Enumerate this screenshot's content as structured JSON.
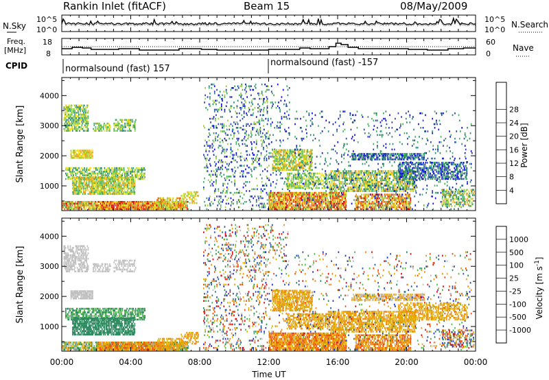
{
  "header": {
    "station": "Rankin Inlet (fitACF)",
    "beam": "Beam 15",
    "date": "08/May/2009"
  },
  "noise_panel": {
    "left_label": "N.Sky",
    "right_label": "N.Search",
    "ytick_top": "10^5",
    "ytick_bottom": "10^0",
    "rtick_top": "10^5",
    "rtick_bottom": "10^0"
  },
  "freq_panel": {
    "left_label_1": "Freq.",
    "left_label_2": "[MHz]",
    "right_label": "Nave",
    "ytick_top": "18",
    "ytick_bottom": "8",
    "rtick_top": "60",
    "rtick_bottom": "0"
  },
  "cpid_panel": {
    "label": "CPID",
    "modes": [
      {
        "text": "normalsound (fast) 157",
        "start_hour": 0
      },
      {
        "text": "normalsound (fast) -157",
        "start_hour": 12
      }
    ]
  },
  "colors": {
    "power_scale": [
      "#1010e0",
      "#2a3fb0",
      "#2f8a7a",
      "#43b060",
      "#9ad040",
      "#f0e020",
      "#f0a020",
      "#f06010",
      "#e01010"
    ],
    "velocity_scale": [
      "#2030d0",
      "#2b55a8",
      "#2f8a60",
      "#4fb848",
      "#c0c0c0",
      "#e0b000",
      "#f09010",
      "#f05010",
      "#e01010"
    ]
  },
  "chart_data": [
    {
      "type": "heatmap",
      "name": "power",
      "ylabel": "Slant Range [km]",
      "xlabel": "",
      "y_ticks": [
        1000,
        2000,
        3000,
        4000
      ],
      "ylim": [
        180,
        4600
      ],
      "x_range_hours": [
        0,
        24
      ],
      "colorbar_label": "Power [dB]",
      "colorbar_ticks": [
        "4",
        "8",
        "12",
        "16",
        "20",
        "24",
        "28"
      ],
      "colorbar_range": [
        0,
        30
      ]
    },
    {
      "type": "heatmap",
      "name": "velocity",
      "ylabel": "Slant Range [km]",
      "xlabel": "Time UT",
      "y_ticks": [
        1000,
        2000,
        3000,
        4000
      ],
      "ylim": [
        180,
        4600
      ],
      "x_range_hours": [
        0,
        24
      ],
      "colorbar_label": "Velocity [m s^-1]",
      "colorbar_ticks": [
        "1000",
        "500",
        "100",
        "25",
        "-25",
        "-100",
        "-500",
        "-1000"
      ]
    }
  ],
  "x_ticks": [
    "00:00",
    "04:00",
    "08:00",
    "12:00",
    "16:00",
    "20:00",
    "00:00"
  ]
}
